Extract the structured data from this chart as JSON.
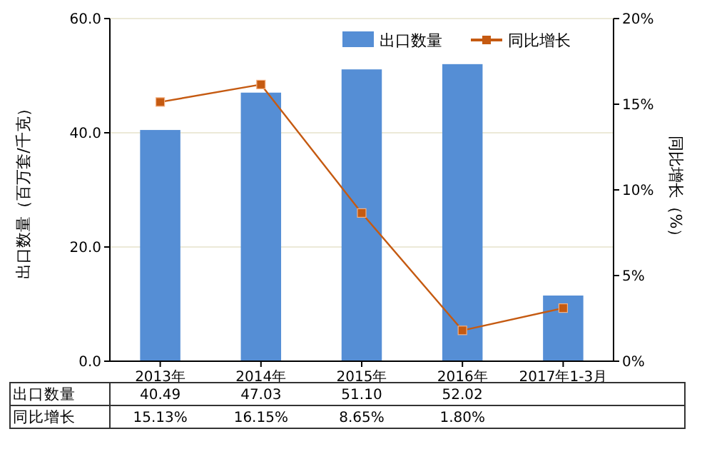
{
  "chart_data": {
    "type": "bar",
    "categories": [
      "2013年",
      "2014年",
      "2015年",
      "2016年",
      "2017年1-3月"
    ],
    "ylabel": "出口数量（百万套/千克）",
    "y2label": "同比增长（%）",
    "ylim": [
      0,
      60
    ],
    "yticks": [
      {
        "value": 0,
        "label": "0.0"
      },
      {
        "value": 20,
        "label": "20.0"
      },
      {
        "value": 40,
        "label": "40.0"
      },
      {
        "value": 60,
        "label": "60.0"
      }
    ],
    "y2lim": [
      0,
      20
    ],
    "y2ticks": [
      {
        "value": 0,
        "label": "0%"
      },
      {
        "value": 5,
        "label": "5%"
      },
      {
        "value": 10,
        "label": "10%"
      },
      {
        "value": 15,
        "label": "15%"
      },
      {
        "value": 20,
        "label": "20%"
      }
    ],
    "grid": "y",
    "legend": "top right",
    "series": [
      {
        "name": "出口数量",
        "color": "#558ed5",
        "values": [
          40.49,
          47.03,
          51.1,
          52.02,
          11.5
        ],
        "value_labels": [
          "40.49",
          "47.03",
          "51.10",
          "52.02",
          null
        ]
      },
      {
        "name": "同比增长",
        "type": "line",
        "axis": "y2",
        "color": "#c55a11",
        "marker": "square",
        "values": [
          15.13,
          16.15,
          8.65,
          1.8,
          3.1
        ],
        "value_labels": [
          "15.13%",
          "16.15%",
          "8.65%",
          "1.80%",
          null
        ]
      }
    ]
  }
}
